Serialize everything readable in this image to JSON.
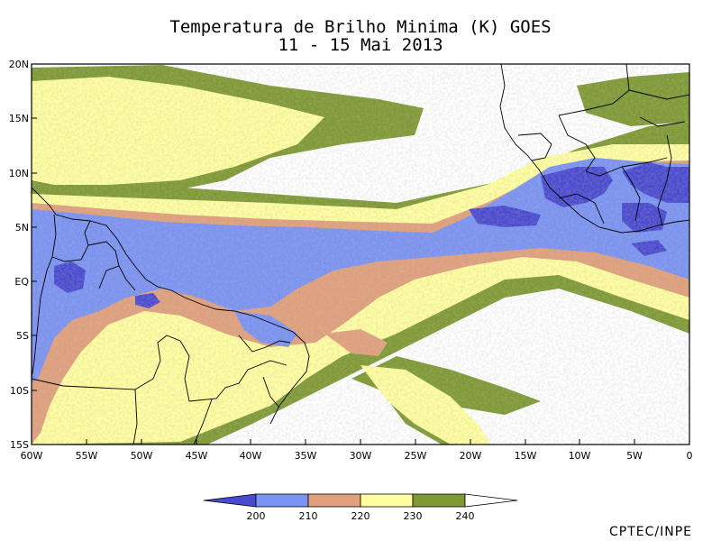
{
  "title_line1": "Temperatura de Brilho Minima (K) GOES",
  "title_line2": "11 - 15 Mai 2013",
  "credit": "CPTEC/INPE",
  "colors": {
    "c200": "#4a4ad0",
    "c210": "#7b93f2",
    "c220": "#e0a07d",
    "c230": "#fffea0",
    "c240": "#7f9a35",
    "background": "#ffffff",
    "coast": "#000000"
  },
  "map": {
    "lon_range": [
      -60,
      0
    ],
    "lat_range": [
      -15,
      20
    ],
    "y_ticks": [
      "20N",
      "15N",
      "10N",
      "5N",
      "EQ",
      "5S",
      "10S",
      "15S"
    ],
    "x_ticks": [
      "60W",
      "55W",
      "50W",
      "45W",
      "40W",
      "35W",
      "30W",
      "25W",
      "20W",
      "15W",
      "10W",
      "5W",
      "0"
    ]
  },
  "colorbar": {
    "labels": [
      "200",
      "210",
      "220",
      "230",
      "240"
    ]
  }
}
